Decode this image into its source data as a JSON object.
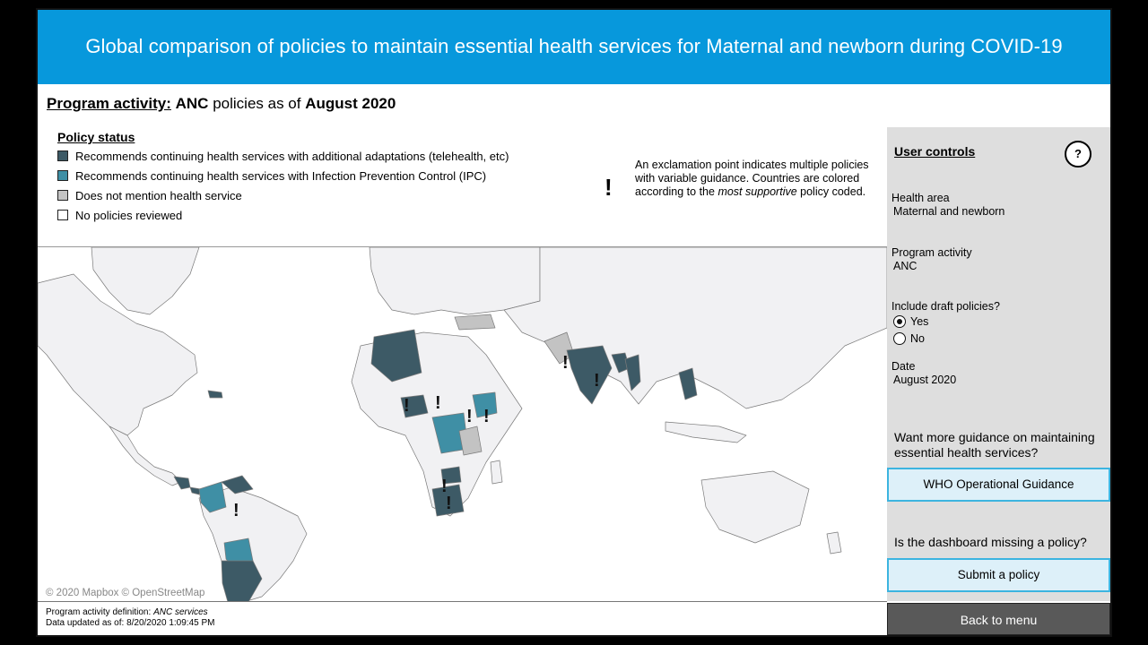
{
  "header": {
    "title": "Global comparison of policies to maintain essential health services for Maternal and newborn during COVID-19"
  },
  "subtitle": {
    "prefix": "Program activity:",
    "activity": "ANC",
    "middle": "policies as of",
    "date": "August 2020"
  },
  "legend": {
    "title": "Policy status",
    "items": [
      {
        "label": "Recommends continuing health services with additional adaptations (telehealth, etc)",
        "color": "#3d5a66"
      },
      {
        "label": "Recommends continuing health services with Infection Prevention Control (IPC)",
        "color": "#3f8fa5"
      },
      {
        "label": "Does not mention health service",
        "color": "#c3c3c3"
      },
      {
        "label": "No policies reviewed",
        "color": "#ffffff"
      }
    ]
  },
  "note": {
    "symbol": "!",
    "text_before": "An exclamation point indicates multiple policies with variable guidance. Countries are colored according to the",
    "text_em": "most supportive",
    "text_after": "policy coded."
  },
  "map": {
    "attribution": "© 2020 Mapbox © OpenStreetMap",
    "marker": "!"
  },
  "footer": {
    "definition_label": "Program activity definition:",
    "definition_value": "ANC services",
    "updated": "Data updated as of: 8/20/2020 1:09:45 PM"
  },
  "controls": {
    "title": "User controls",
    "help_label": "?",
    "health_area_label": "Health area",
    "health_area_value": "Maternal and newborn",
    "program_label": "Program activity",
    "program_value": "ANC",
    "draft_label": "Include draft policies?",
    "draft_yes": "Yes",
    "draft_no": "No",
    "draft_selected": "Yes",
    "date_label": "Date",
    "date_value": "August 2020",
    "guidance_question": "Want more guidance on maintaining essential health services?",
    "guidance_button": "WHO Operational Guidance",
    "missing_question": "Is the dashboard missing a policy?",
    "submit_button": "Submit a policy",
    "back_button": "Back to menu"
  }
}
